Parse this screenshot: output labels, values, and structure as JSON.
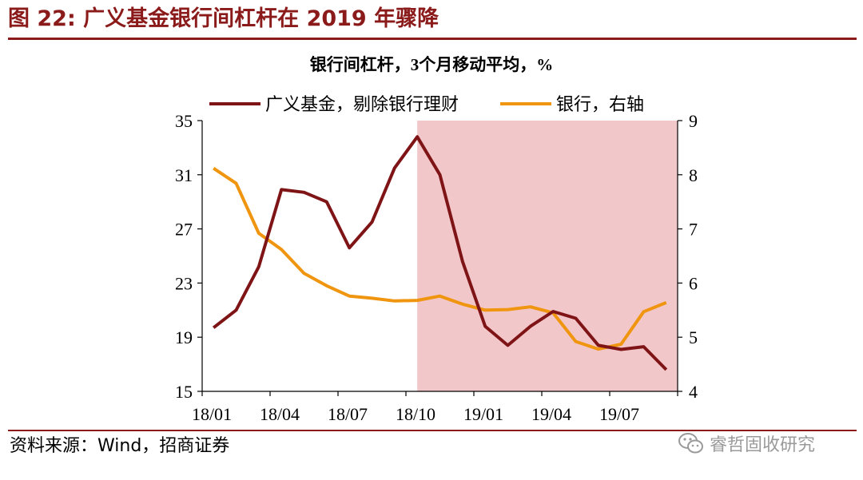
{
  "figure": {
    "title": "图  22:  广义基金银行间杠杆在 2019 年骤降",
    "source": "资料来源：Wind，招商证券",
    "watermark": "睿哲固收研究"
  },
  "colors": {
    "accent": "#8b1a1a",
    "series_fund": "#7f1416",
    "series_bank": "#f0950f",
    "shade": "#f2c7ca"
  },
  "chart_data": {
    "type": "line",
    "title": "银行间杠杆，3个月移动平均，%",
    "x": [
      "18/01",
      "18/02",
      "18/03",
      "18/04",
      "18/05",
      "18/06",
      "18/07",
      "18/08",
      "18/09",
      "18/10",
      "18/11",
      "18/12",
      "19/01",
      "19/02",
      "19/03",
      "19/04",
      "19/05",
      "19/06",
      "19/07",
      "19/08",
      "19/09"
    ],
    "x_tick_labels": [
      "18/01",
      "18/04",
      "18/07",
      "18/10",
      "19/01",
      "19/04",
      "19/07"
    ],
    "series": [
      {
        "name": "广义基金，剔除银行理财",
        "axis": "left",
        "values": [
          19.7,
          21.0,
          24.2,
          29.9,
          29.7,
          29.0,
          25.6,
          27.5,
          31.5,
          33.8,
          31.0,
          24.6,
          19.8,
          18.4,
          19.8,
          20.9,
          20.4,
          18.4,
          18.1,
          18.3,
          16.6
        ]
      },
      {
        "name": "银行，右轴",
        "axis": "right",
        "values": [
          8.12,
          7.84,
          6.92,
          6.62,
          6.18,
          5.95,
          5.76,
          5.72,
          5.67,
          5.68,
          5.76,
          5.61,
          5.5,
          5.51,
          5.56,
          5.45,
          4.92,
          4.78,
          4.87,
          5.47,
          5.64
        ]
      }
    ],
    "y_left": {
      "lim": [
        15,
        35
      ],
      "ticks": [
        15,
        19,
        23,
        27,
        31,
        35
      ]
    },
    "y_right": {
      "lim": [
        4,
        9
      ],
      "ticks": [
        4,
        5,
        6,
        7,
        8,
        9
      ]
    },
    "shaded_region": {
      "from": "18/10",
      "to": "19/09"
    },
    "legend_position": "top",
    "grid": false
  }
}
